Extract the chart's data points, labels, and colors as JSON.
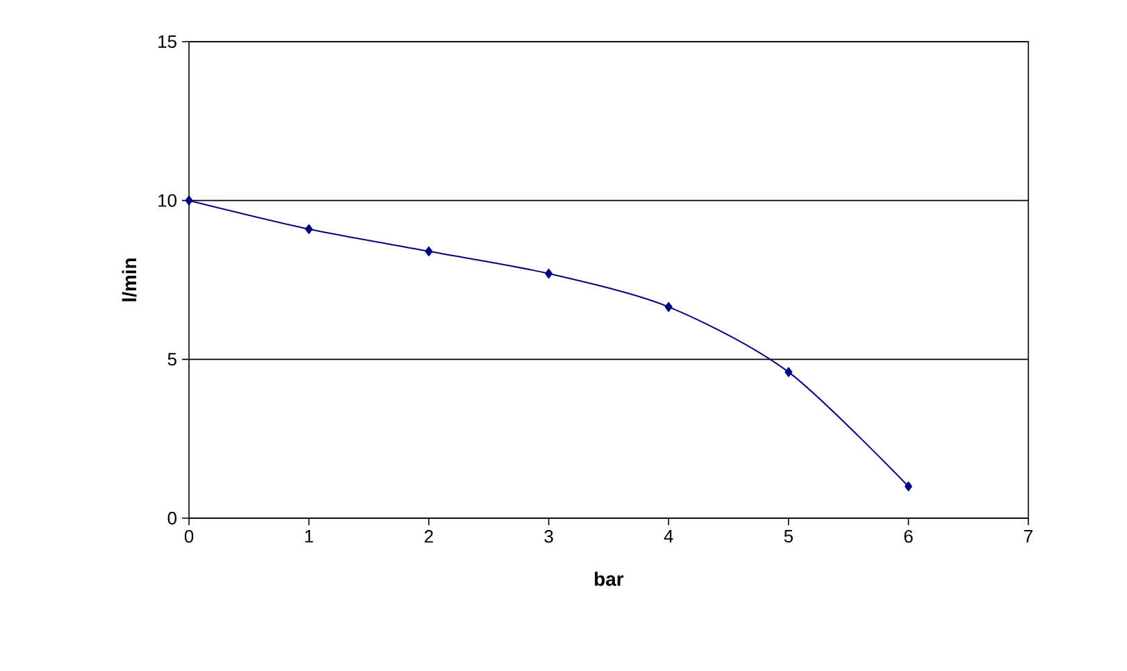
{
  "chart_data": {
    "type": "line",
    "xlabel": "bar",
    "ylabel": "l/min",
    "x": [
      0,
      1,
      2,
      3,
      4,
      5,
      6
    ],
    "series": [
      {
        "color": "#000080",
        "values": [
          10,
          9.1,
          8.4,
          7.7,
          6.65,
          4.6,
          1.0
        ]
      }
    ],
    "xlim": [
      0,
      7
    ],
    "xticks": [
      0,
      1,
      2,
      3,
      4,
      5,
      6,
      7
    ],
    "ylim": [
      0,
      15
    ],
    "yticks": [
      0,
      5,
      10,
      15
    ],
    "grid": "y",
    "marker": "diamond",
    "line_style": "solid"
  }
}
